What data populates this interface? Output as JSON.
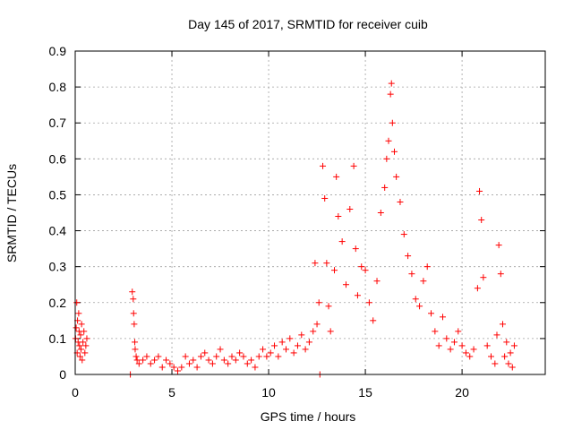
{
  "chart_data": {
    "type": "scatter",
    "title": "Day 145 of 2017, SRMTID for receiver cuib",
    "xlabel": "GPS time / hours",
    "ylabel": "SRMTID / TECUs",
    "xlim": [
      0,
      24.3
    ],
    "ylim": [
      0,
      0.9
    ],
    "x_ticks": [
      0,
      5,
      10,
      15,
      20
    ],
    "y_ticks": [
      0,
      0.1,
      0.2,
      0.3,
      0.4,
      0.5,
      0.6,
      0.7,
      0.8,
      0.9
    ],
    "x_tick_labels": [
      "0",
      "5",
      "10",
      "15",
      "20"
    ],
    "y_tick_labels": [
      "0",
      "0.1",
      "0.2",
      "0.3",
      "0.4",
      "0.5",
      "0.6",
      "0.7",
      "0.8",
      "0.9"
    ],
    "grid": true,
    "marker": "+",
    "series_color": "#ff0000",
    "series": [
      {
        "name": "SRMTID",
        "points": [
          [
            0.02,
            0.1
          ],
          [
            0.05,
            0.13
          ],
          [
            0.08,
            0.2
          ],
          [
            0.1,
            0.06
          ],
          [
            0.12,
            0.15
          ],
          [
            0.15,
            0.09
          ],
          [
            0.18,
            0.17
          ],
          [
            0.2,
            0.12
          ],
          [
            0.22,
            0.08
          ],
          [
            0.25,
            0.05
          ],
          [
            0.28,
            0.11
          ],
          [
            0.3,
            0.07
          ],
          [
            0.33,
            0.14
          ],
          [
            0.36,
            0.04
          ],
          [
            0.4,
            0.09
          ],
          [
            0.45,
            0.12
          ],
          [
            0.5,
            0.06
          ],
          [
            0.55,
            0.08
          ],
          [
            0.6,
            0.1
          ],
          [
            2.85,
            0.0
          ],
          [
            2.95,
            0.23
          ],
          [
            3.0,
            0.21
          ],
          [
            3.02,
            0.17
          ],
          [
            3.05,
            0.14
          ],
          [
            3.08,
            0.09
          ],
          [
            3.1,
            0.07
          ],
          [
            3.15,
            0.05
          ],
          [
            3.2,
            0.04
          ],
          [
            3.3,
            0.03
          ],
          [
            3.5,
            0.04
          ],
          [
            3.7,
            0.05
          ],
          [
            3.9,
            0.03
          ],
          [
            4.1,
            0.04
          ],
          [
            4.3,
            0.05
          ],
          [
            4.5,
            0.02
          ],
          [
            4.7,
            0.04
          ],
          [
            4.9,
            0.03
          ],
          [
            5.1,
            0.02
          ],
          [
            5.3,
            0.01
          ],
          [
            5.5,
            0.02
          ],
          [
            5.7,
            0.05
          ],
          [
            5.9,
            0.03
          ],
          [
            6.1,
            0.04
          ],
          [
            6.3,
            0.02
          ],
          [
            6.5,
            0.05
          ],
          [
            6.7,
            0.06
          ],
          [
            6.9,
            0.04
          ],
          [
            7.1,
            0.03
          ],
          [
            7.3,
            0.05
          ],
          [
            7.5,
            0.07
          ],
          [
            7.7,
            0.04
          ],
          [
            7.9,
            0.03
          ],
          [
            8.1,
            0.05
          ],
          [
            8.3,
            0.04
          ],
          [
            8.5,
            0.06
          ],
          [
            8.7,
            0.05
          ],
          [
            8.9,
            0.03
          ],
          [
            9.1,
            0.04
          ],
          [
            9.3,
            0.02
          ],
          [
            9.5,
            0.05
          ],
          [
            9.7,
            0.07
          ],
          [
            9.9,
            0.05
          ],
          [
            10.1,
            0.06
          ],
          [
            10.3,
            0.08
          ],
          [
            10.5,
            0.05
          ],
          [
            10.7,
            0.09
          ],
          [
            10.9,
            0.07
          ],
          [
            11.1,
            0.1
          ],
          [
            11.3,
            0.06
          ],
          [
            11.5,
            0.08
          ],
          [
            11.7,
            0.11
          ],
          [
            11.9,
            0.07
          ],
          [
            12.1,
            0.09
          ],
          [
            12.3,
            0.12
          ],
          [
            12.4,
            0.31
          ],
          [
            12.5,
            0.14
          ],
          [
            12.6,
            0.2
          ],
          [
            12.65,
            0.0
          ],
          [
            12.8,
            0.58
          ],
          [
            12.9,
            0.49
          ],
          [
            13.0,
            0.31
          ],
          [
            13.1,
            0.19
          ],
          [
            13.2,
            0.12
          ],
          [
            13.4,
            0.29
          ],
          [
            13.5,
            0.55
          ],
          [
            13.6,
            0.44
          ],
          [
            13.8,
            0.37
          ],
          [
            14.0,
            0.25
          ],
          [
            14.2,
            0.46
          ],
          [
            14.4,
            0.58
          ],
          [
            14.5,
            0.35
          ],
          [
            14.6,
            0.22
          ],
          [
            14.8,
            0.3
          ],
          [
            15.0,
            0.29
          ],
          [
            15.2,
            0.2
          ],
          [
            15.4,
            0.15
          ],
          [
            15.6,
            0.26
          ],
          [
            15.8,
            0.45
          ],
          [
            16.0,
            0.52
          ],
          [
            16.1,
            0.6
          ],
          [
            16.2,
            0.65
          ],
          [
            16.3,
            0.78
          ],
          [
            16.35,
            0.81
          ],
          [
            16.4,
            0.7
          ],
          [
            16.5,
            0.62
          ],
          [
            16.6,
            0.55
          ],
          [
            16.8,
            0.48
          ],
          [
            17.0,
            0.39
          ],
          [
            17.2,
            0.33
          ],
          [
            17.4,
            0.28
          ],
          [
            17.6,
            0.21
          ],
          [
            17.8,
            0.19
          ],
          [
            18.0,
            0.26
          ],
          [
            18.2,
            0.3
          ],
          [
            18.4,
            0.17
          ],
          [
            18.6,
            0.12
          ],
          [
            18.8,
            0.08
          ],
          [
            19.0,
            0.16
          ],
          [
            19.2,
            0.1
          ],
          [
            19.4,
            0.07
          ],
          [
            19.6,
            0.09
          ],
          [
            19.8,
            0.12
          ],
          [
            20.0,
            0.08
          ],
          [
            20.2,
            0.06
          ],
          [
            20.4,
            0.05
          ],
          [
            20.6,
            0.07
          ],
          [
            20.8,
            0.24
          ],
          [
            20.9,
            0.51
          ],
          [
            21.0,
            0.43
          ],
          [
            21.1,
            0.27
          ],
          [
            21.3,
            0.08
          ],
          [
            21.5,
            0.05
          ],
          [
            21.7,
            0.03
          ],
          [
            21.8,
            0.11
          ],
          [
            21.9,
            0.36
          ],
          [
            22.0,
            0.28
          ],
          [
            22.1,
            0.14
          ],
          [
            22.2,
            0.05
          ],
          [
            22.3,
            0.09
          ],
          [
            22.4,
            0.03
          ],
          [
            22.5,
            0.06
          ],
          [
            22.6,
            0.02
          ],
          [
            22.7,
            0.08
          ]
        ]
      }
    ]
  }
}
